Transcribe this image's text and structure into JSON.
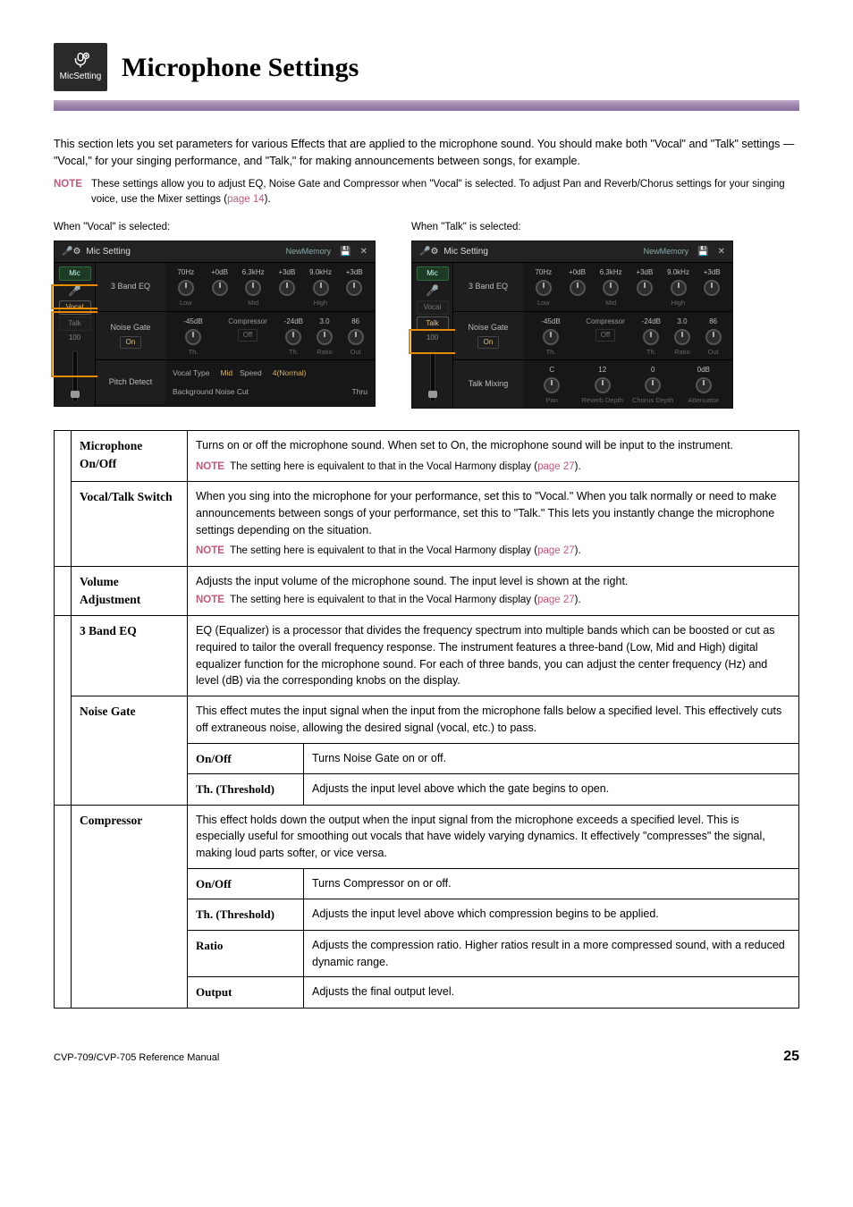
{
  "header": {
    "icon_label": "MicSetting",
    "title": "Microphone Settings"
  },
  "intro": "This section lets you set parameters for various Effects that are applied to the microphone sound. You should make both \"Vocal\" and \"Talk\" settings — \"Vocal,\" for your singing performance, and \"Talk,\" for making announcements between songs, for example.",
  "top_note": {
    "label": "NOTE",
    "text": "These settings allow you to adjust EQ, Noise Gate and Compressor when \"Vocal\" is selected. To adjust Pan and Reverb/Chorus settings for your singing voice, use the Mixer settings (",
    "link": "page 14",
    "after": ")."
  },
  "shots": {
    "vocal": {
      "caption": "When \"Vocal\" is selected:",
      "title": "Mic Setting",
      "memory": "NewMemory",
      "side": {
        "mic": "Mic",
        "vocal": "Vocal",
        "talk": "Talk",
        "hundred": "100"
      },
      "eq": {
        "label": "3 Band EQ",
        "cols": [
          {
            "v": "70Hz",
            "l": "Low"
          },
          {
            "v": "+0dB",
            "l": ""
          },
          {
            "v": "6.3kHz",
            "l": "Mid"
          },
          {
            "v": "+3dB",
            "l": ""
          },
          {
            "v": "9.0kHz",
            "l": "High"
          },
          {
            "v": "+3dB",
            "l": ""
          }
        ]
      },
      "ng": {
        "label": "Noise Gate",
        "on": "On",
        "left": {
          "v": "-45dB",
          "l": "Th."
        },
        "comp_label": "Compressor",
        "comp_on": "Off",
        "cols": [
          {
            "v": "-24dB",
            "l": "Th."
          },
          {
            "v": "3.0",
            "l": "Ratio"
          },
          {
            "v": "86",
            "l": "Out"
          }
        ]
      },
      "pitch": {
        "label": "Pitch Detect",
        "type_l": "Vocal Type",
        "type_v": "Mid",
        "speed_l": "Speed",
        "speed_v": "4(Normal)",
        "bg_l": "Background Noise Cut",
        "bg_v": "Thru"
      }
    },
    "talk": {
      "caption": "When \"Talk\" is selected:",
      "title": "Mic Setting",
      "memory": "NewMemory",
      "side": {
        "mic": "Mic",
        "vocal": "Vocal",
        "talk": "Talk",
        "hundred": "100"
      },
      "eq": {
        "label": "3 Band EQ",
        "cols": [
          {
            "v": "70Hz",
            "l": "Low"
          },
          {
            "v": "+0dB",
            "l": ""
          },
          {
            "v": "6.3kHz",
            "l": "Mid"
          },
          {
            "v": "+3dB",
            "l": ""
          },
          {
            "v": "9.0kHz",
            "l": "High"
          },
          {
            "v": "+3dB",
            "l": ""
          }
        ]
      },
      "ng": {
        "label": "Noise Gate",
        "on": "On",
        "left": {
          "v": "-45dB",
          "l": "Th."
        },
        "comp_label": "Compressor",
        "comp_on": "Off",
        "cols": [
          {
            "v": "-24dB",
            "l": "Th."
          },
          {
            "v": "3.0",
            "l": "Ratio"
          },
          {
            "v": "86",
            "l": "Out"
          }
        ]
      },
      "mix": {
        "label": "Talk Mixing",
        "cols": [
          {
            "v": "C",
            "l": "Pan"
          },
          {
            "v": "12",
            "l": "Reverb Depth"
          },
          {
            "v": "0",
            "l": "Chorus Depth"
          },
          {
            "v": "0dB",
            "l": "Attenuator"
          }
        ]
      }
    }
  },
  "table_note_common": {
    "label": "NOTE",
    "text": "The setting here is equivalent to that in the Vocal Harmony display (",
    "link": "page 27",
    "after": ")."
  },
  "rows": {
    "mic": {
      "name": "Microphone On/Off",
      "desc": "Turns on or off the microphone sound. When set to On, the microphone sound will be input to the instrument."
    },
    "vt": {
      "name": "Vocal/Talk Switch",
      "desc": "When you sing into the microphone for your performance, set this to \"Vocal.\" When you talk normally or need to make announcements between songs of your performance, set this to \"Talk.\" This lets you instantly change the microphone settings depending on the situation."
    },
    "vol": {
      "name": "Volume Adjustment",
      "desc": "Adjusts the input volume of the microphone sound. The input level is shown at the right."
    },
    "eq": {
      "name": "3 Band EQ",
      "desc": "EQ (Equalizer) is a processor that divides the frequency spectrum into multiple bands which can be boosted or cut as required to tailor the overall frequency response. The instrument features a three-band (Low, Mid and High) digital equalizer function for the microphone sound. For each of three bands, you can adjust the center frequency (Hz) and level (dB) via the corresponding knobs on the display."
    },
    "ng": {
      "name": "Noise Gate",
      "desc": "This effect mutes the input signal when the input from the microphone falls below a specified level. This effectively cuts off extraneous noise, allowing the desired signal (vocal, etc.) to pass.",
      "sub": [
        {
          "n": "On/Off",
          "d": "Turns Noise Gate on or off."
        },
        {
          "n": "Th. (Threshold)",
          "d": "Adjusts the input level above which the gate begins to open."
        }
      ]
    },
    "comp": {
      "name": "Compressor",
      "desc": "This effect holds down the output when the input signal from the microphone exceeds a specified level. This is especially useful for smoothing out vocals that have widely varying dynamics. It effectively \"compresses\" the signal, making loud parts softer, or vice versa.",
      "sub": [
        {
          "n": "On/Off",
          "d": "Turns Compressor on or off."
        },
        {
          "n": "Th. (Threshold)",
          "d": "Adjusts the input level above which compression begins to be applied."
        },
        {
          "n": "Ratio",
          "d": "Adjusts the compression ratio. Higher ratios result in a more compressed sound, with a reduced dynamic range."
        },
        {
          "n": "Output",
          "d": "Adjusts the final output level."
        }
      ]
    }
  },
  "footer": {
    "left": "CVP-709/CVP-705 Reference Manual",
    "page": "25"
  }
}
